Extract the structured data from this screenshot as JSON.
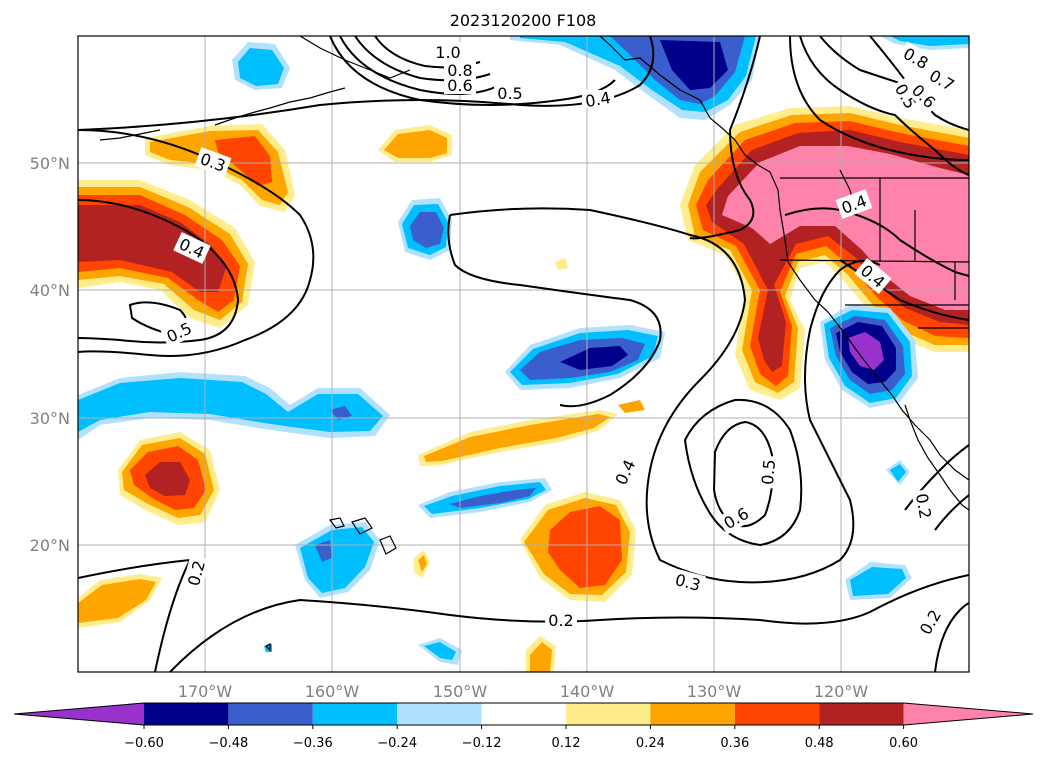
{
  "title": "2023120200 F108",
  "map": {
    "lat_ticks": [
      "50°N",
      "40°N",
      "30°N",
      "20°N"
    ],
    "lon_ticks": [
      "170°W",
      "160°W",
      "150°W",
      "140°W",
      "130°W",
      "120°W"
    ],
    "grid": true
  },
  "colorbar": {
    "ticks": [
      "−0.60",
      "−0.48",
      "−0.36",
      "−0.24",
      "−0.12",
      "0.12",
      "0.24",
      "0.36",
      "0.48",
      "0.60"
    ],
    "colors": {
      "under": "#9932cc",
      "levels": [
        "#00008b",
        "#3a5fcd",
        "#00bfff",
        "#b0e2ff",
        "#ffffff",
        "#ffec8b",
        "#ffa500",
        "#ff4500",
        "#b22222"
      ],
      "over": "#ff82ab"
    }
  },
  "contour_labels": [
    "1.0",
    "0.8",
    "0.6",
    "0.5",
    "0.4",
    "0.3",
    "0.4",
    "0.5",
    "0.4",
    "0.5",
    "0.6",
    "0.3",
    "0.2",
    "0.2",
    "0.2",
    "0.8",
    "0.7",
    "0.5",
    "0.6",
    "0.4",
    "0.4",
    "0.2"
  ]
}
